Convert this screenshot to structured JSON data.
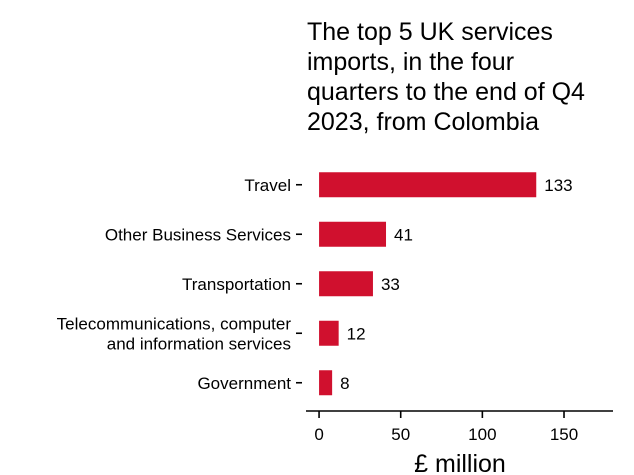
{
  "chart_data": {
    "type": "bar",
    "orientation": "horizontal",
    "title": [
      "The top 5 UK services",
      "imports, in the four",
      "quarters to the end of Q4",
      "2023, from Colombia"
    ],
    "categories": [
      [
        "Travel"
      ],
      [
        "Other Business Services"
      ],
      [
        "Transportation"
      ],
      [
        "Telecommunications, computer",
        "and information services"
      ],
      [
        "Government"
      ]
    ],
    "values": [
      133,
      41,
      33,
      12,
      8
    ],
    "value_labels": [
      "133",
      "41",
      "33",
      "12",
      "8"
    ],
    "xlabel": "£ million",
    "xlim": [
      -8,
      180
    ],
    "xticks": [
      0,
      50,
      100,
      150
    ],
    "xtick_labels": [
      "0",
      "50",
      "100",
      "150"
    ],
    "grid": false,
    "bar_color": "#d0102e"
  }
}
